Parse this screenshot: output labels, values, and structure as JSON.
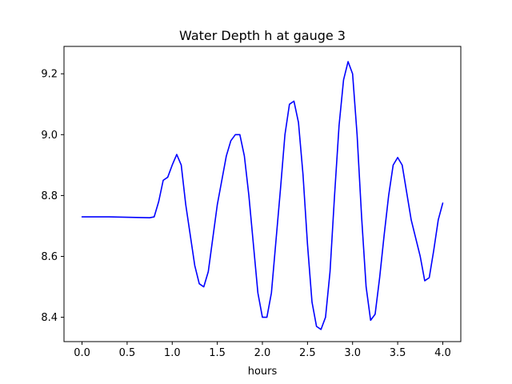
{
  "chart_data": {
    "type": "line",
    "title": "Water Depth h at gauge 3",
    "xlabel": "hours",
    "ylabel": "",
    "xlim": [
      -0.2,
      4.2
    ],
    "ylim": [
      8.32,
      9.29
    ],
    "xticks": [
      0.0,
      0.5,
      1.0,
      1.5,
      2.0,
      2.5,
      3.0,
      3.5,
      4.0
    ],
    "xtick_labels": [
      "0.0",
      "0.5",
      "1.0",
      "1.5",
      "2.0",
      "2.5",
      "3.0",
      "3.5",
      "4.0"
    ],
    "yticks": [
      8.4,
      8.6,
      8.8,
      9.0,
      9.2
    ],
    "ytick_labels": [
      "8.4",
      "8.6",
      "8.8",
      "9.0",
      "9.2"
    ],
    "grid": false,
    "legend": "none",
    "series": [
      {
        "color": "#0000ff",
        "x": [
          0.0,
          0.3,
          0.6,
          0.75,
          0.8,
          0.85,
          0.9,
          0.95,
          1.0,
          1.05,
          1.1,
          1.15,
          1.2,
          1.25,
          1.3,
          1.35,
          1.4,
          1.45,
          1.5,
          1.55,
          1.6,
          1.65,
          1.7,
          1.75,
          1.8,
          1.85,
          1.9,
          1.95,
          2.0,
          2.05,
          2.1,
          2.15,
          2.2,
          2.25,
          2.3,
          2.35,
          2.4,
          2.45,
          2.5,
          2.55,
          2.6,
          2.65,
          2.7,
          2.75,
          2.8,
          2.85,
          2.9,
          2.95,
          3.0,
          3.05,
          3.1,
          3.15,
          3.2,
          3.25,
          3.3,
          3.35,
          3.4,
          3.45,
          3.5,
          3.55,
          3.6,
          3.65,
          3.7,
          3.75,
          3.8,
          3.85,
          3.9,
          3.95,
          4.0
        ],
        "y": [
          8.73,
          8.73,
          8.728,
          8.727,
          8.73,
          8.78,
          8.85,
          8.86,
          8.9,
          8.935,
          8.9,
          8.77,
          8.67,
          8.57,
          8.51,
          8.5,
          8.55,
          8.66,
          8.77,
          8.85,
          8.93,
          8.98,
          9.0,
          9.0,
          8.93,
          8.8,
          8.64,
          8.48,
          8.4,
          8.4,
          8.48,
          8.65,
          8.82,
          9.0,
          9.1,
          9.11,
          9.04,
          8.87,
          8.64,
          8.45,
          8.37,
          8.36,
          8.4,
          8.55,
          8.8,
          9.03,
          9.18,
          9.24,
          9.2,
          9.0,
          8.73,
          8.5,
          8.39,
          8.41,
          8.53,
          8.67,
          8.8,
          8.9,
          8.925,
          8.9,
          8.81,
          8.72,
          8.66,
          8.6,
          8.52,
          8.53,
          8.62,
          8.72,
          8.775
        ]
      }
    ]
  }
}
